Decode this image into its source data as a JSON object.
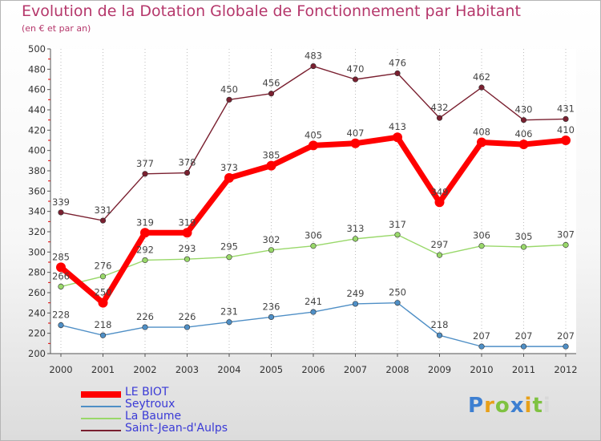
{
  "chart_data": {
    "type": "line",
    "title": "Evolution de la Dotation Globale de Fonctionnement par Habitant",
    "subtitle": "(en € et par an)",
    "xlabel": "",
    "ylabel": "",
    "ylim": [
      200,
      500
    ],
    "yticks": [
      200,
      220,
      240,
      260,
      280,
      300,
      320,
      340,
      360,
      380,
      400,
      420,
      440,
      460,
      480,
      500
    ],
    "x": [
      "2000",
      "2001",
      "2002",
      "2003",
      "2004",
      "2005",
      "2006",
      "2007",
      "2008",
      "2009",
      "2010",
      "2011",
      "2012"
    ],
    "grid": "vertical dotted lines",
    "legend_position": "bottom-left",
    "series": [
      {
        "name": "LE BIOT",
        "color": "#ff0000",
        "values": [
          285,
          250,
          319,
          319,
          373,
          385,
          405,
          407,
          413,
          349,
          408,
          406,
          410
        ]
      },
      {
        "name": "Seytroux",
        "color": "#4f8fc6",
        "values": [
          228,
          218,
          226,
          226,
          231,
          236,
          241,
          249,
          250,
          218,
          207,
          207,
          207
        ]
      },
      {
        "name": "La Baume",
        "color": "#99d86a",
        "values": [
          266,
          276,
          292,
          293,
          295,
          302,
          306,
          313,
          317,
          297,
          306,
          305,
          307
        ]
      },
      {
        "name": "Saint-Jean-d'Aulps",
        "color": "#7a2030",
        "values": [
          339,
          331,
          377,
          378,
          450,
          456,
          483,
          470,
          476,
          432,
          462,
          430,
          431
        ]
      }
    ]
  },
  "logo": {
    "letters": [
      {
        "ch": "P",
        "color": "#3d7fd1"
      },
      {
        "ch": "r",
        "color": "#e8a01a"
      },
      {
        "ch": "o",
        "color": "#7fc241"
      },
      {
        "ch": "x",
        "color": "#3d7fd1"
      },
      {
        "ch": "i",
        "color": "#e8a01a"
      },
      {
        "ch": "t",
        "color": "#7fc241"
      },
      {
        "ch": "i",
        "color": "#d8d8d8"
      }
    ]
  }
}
